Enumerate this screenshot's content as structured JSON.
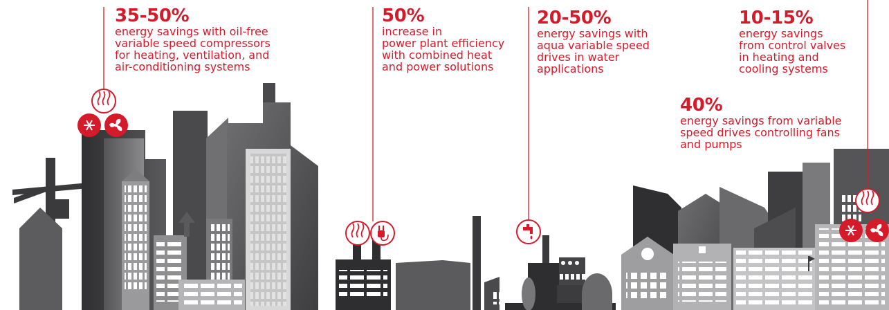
{
  "stats": {
    "hvac": {
      "percent": "35-50%",
      "lines": [
        "energy savings with oil-free",
        "variable speed compressors",
        "for heating, ventilation, and",
        "air-conditioning systems"
      ]
    },
    "chp": {
      "percent": "50%",
      "lines": [
        "increase in",
        "power plant efficiency",
        "with combined heat",
        "and power solutions"
      ]
    },
    "water": {
      "percent": "20-50%",
      "lines": [
        "energy savings with",
        "aqua variable speed",
        "drives in water",
        "applications"
      ]
    },
    "valves": {
      "percent": "10-15%",
      "lines": [
        "energy savings",
        "from control valves",
        "in heating and",
        "cooling systems"
      ]
    },
    "fans": {
      "percent": "40%",
      "lines": [
        "energy savings from variable",
        "speed drives controlling fans",
        "and pumps"
      ]
    }
  },
  "colors": {
    "accent": "#d51a2a",
    "dark_building": "#3c3c3e",
    "mid_building": "#6b6b6d",
    "light_building": "#a6a6a8",
    "window": "#ffffff"
  },
  "icons": [
    "heat-waves-icon",
    "snowflake-icon",
    "fan-icon",
    "plug-icon",
    "water-tap-icon"
  ]
}
